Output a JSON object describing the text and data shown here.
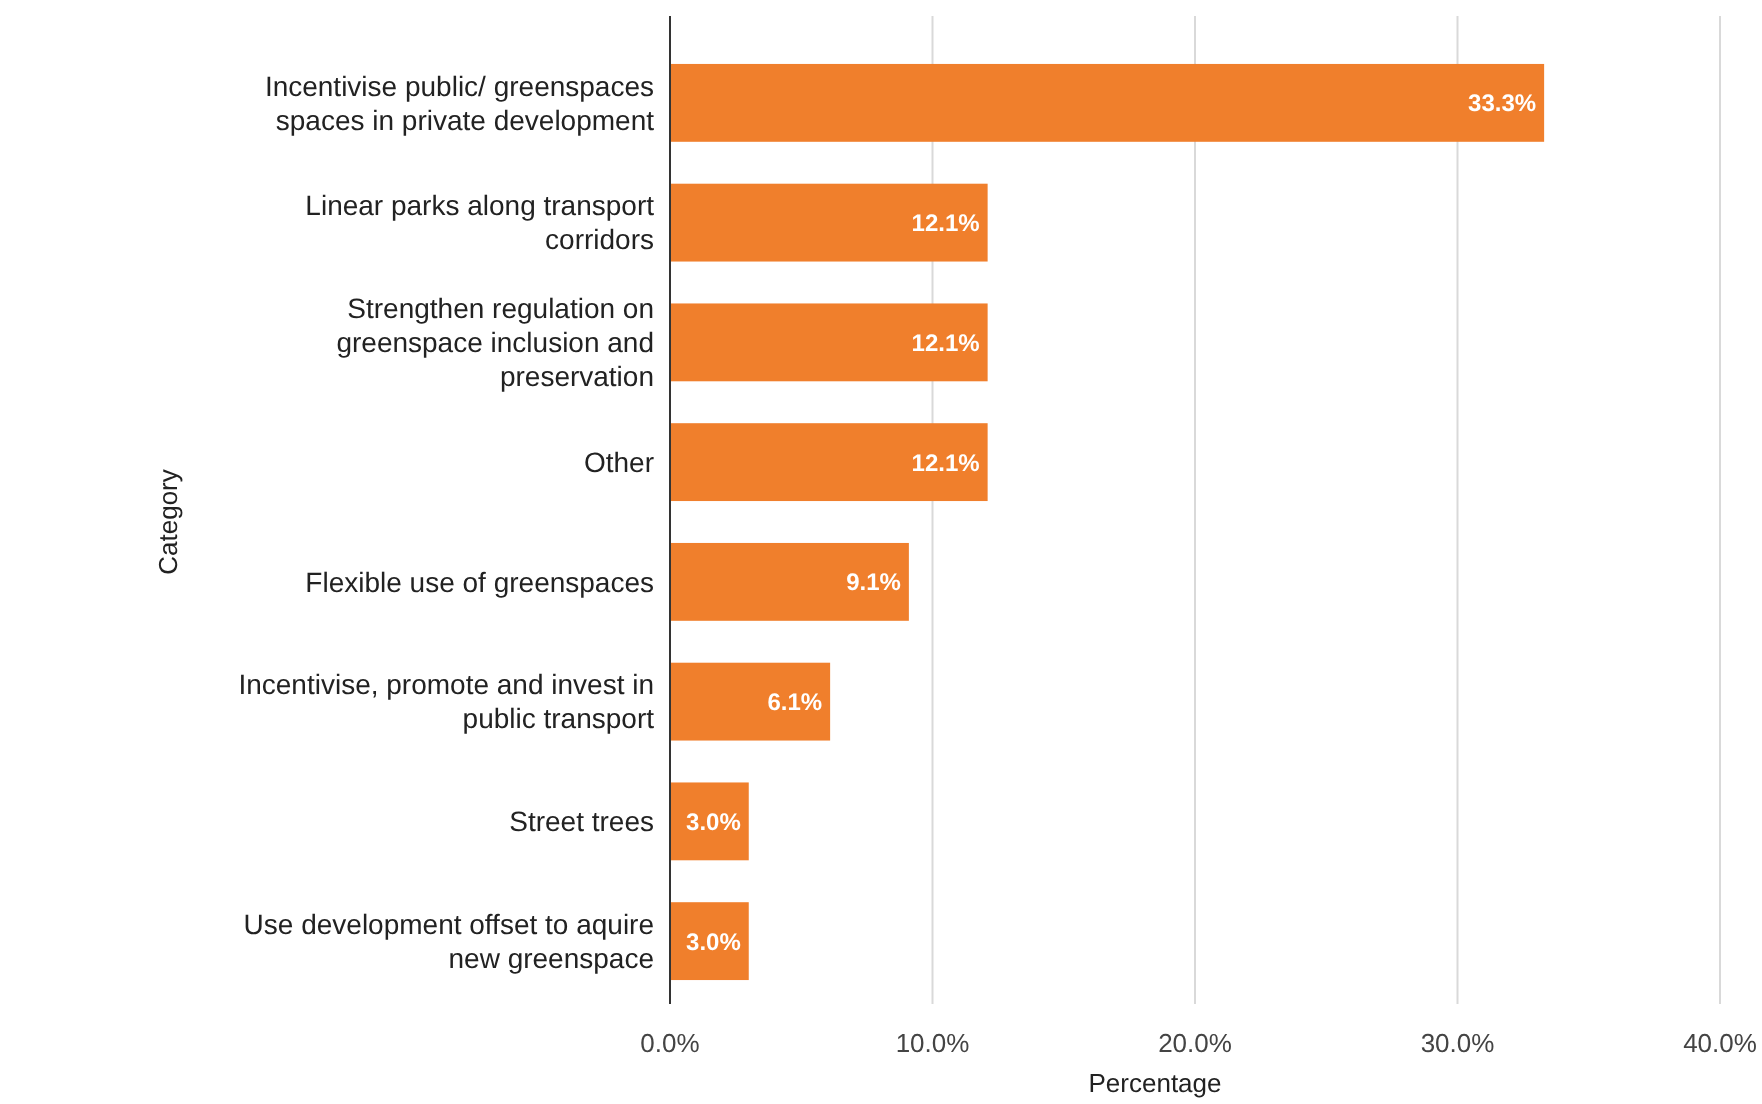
{
  "chart_data": {
    "type": "bar",
    "orientation": "horizontal",
    "xlabel": "Percentage",
    "ylabel": "Category",
    "categories": [
      "Incentivise public/ greenspaces spaces in private development",
      "Linear parks along transport corridors",
      "Strengthen regulation on greenspace inclusion and preservation",
      "Other",
      "Flexible use of greenspaces",
      "Incentivise, promote and invest in public transport",
      "Street trees",
      "Use development offset to aquire new greenspace"
    ],
    "values": [
      33.3,
      12.1,
      12.1,
      12.1,
      9.1,
      6.1,
      3.0,
      3.0
    ],
    "value_labels": [
      "33.3%",
      "12.1%",
      "12.1%",
      "12.1%",
      "9.1%",
      "6.1%",
      "3.0%",
      "3.0%"
    ],
    "color": "#f07f2c",
    "xlim": [
      0,
      40
    ],
    "xticks": [
      {
        "value": 0,
        "label": "0.0%"
      },
      {
        "value": 10,
        "label": "10.0%"
      },
      {
        "value": 20,
        "label": "20.0%"
      },
      {
        "value": 30,
        "label": "30.0%"
      },
      {
        "value": 40,
        "label": "40.0%"
      }
    ],
    "grid": "x"
  }
}
